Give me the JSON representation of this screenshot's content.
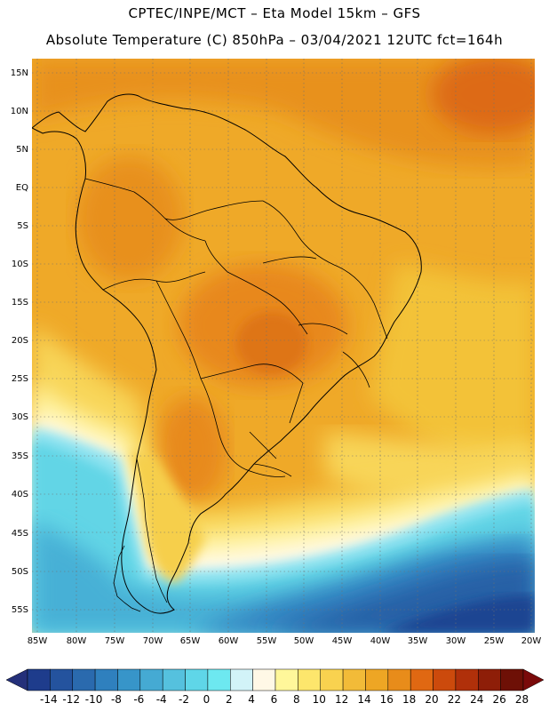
{
  "header": {
    "line1": "CPTEC/INPE/MCT –  Eta Model 15km – GFS",
    "line2": "Absolute Temperature (C) 850hPa – 03/04/2021 12UTC fct=164h"
  },
  "map": {
    "lat_labels": [
      "15N",
      "10N",
      "5N",
      "EQ",
      "5S",
      "10S",
      "15S",
      "20S",
      "25S",
      "30S",
      "35S",
      "40S",
      "45S",
      "50S",
      "55S"
    ],
    "lon_labels": [
      "85W",
      "80W",
      "75W",
      "70W",
      "65W",
      "60W",
      "55W",
      "50W",
      "45W",
      "40W",
      "35W",
      "30W",
      "25W",
      "20W"
    ]
  },
  "colorbar": {
    "labels": [
      "-14",
      "-12",
      "-10",
      "-8",
      "-6",
      "-4",
      "-2",
      "0",
      "2",
      "4",
      "6",
      "8",
      "10",
      "12",
      "14",
      "16",
      "18",
      "20",
      "22",
      "24",
      "26",
      "28"
    ],
    "colors": [
      "#1e3c8c",
      "#24539e",
      "#2a6aae",
      "#2f80be",
      "#3795c9",
      "#45aad3",
      "#55c1de",
      "#5fd6e8",
      "#6de8f0",
      "#d2f3f8",
      "#fff8e6",
      "#fff79a",
      "#fde66c",
      "#f9d24f",
      "#f2bb38",
      "#eea624",
      "#e88c1a",
      "#e06812",
      "#cc4a0c",
      "#b0300a",
      "#8e1e08",
      "#6e1006"
    ],
    "under_color": "#24307a",
    "over_color": "#7a0a0a"
  }
}
